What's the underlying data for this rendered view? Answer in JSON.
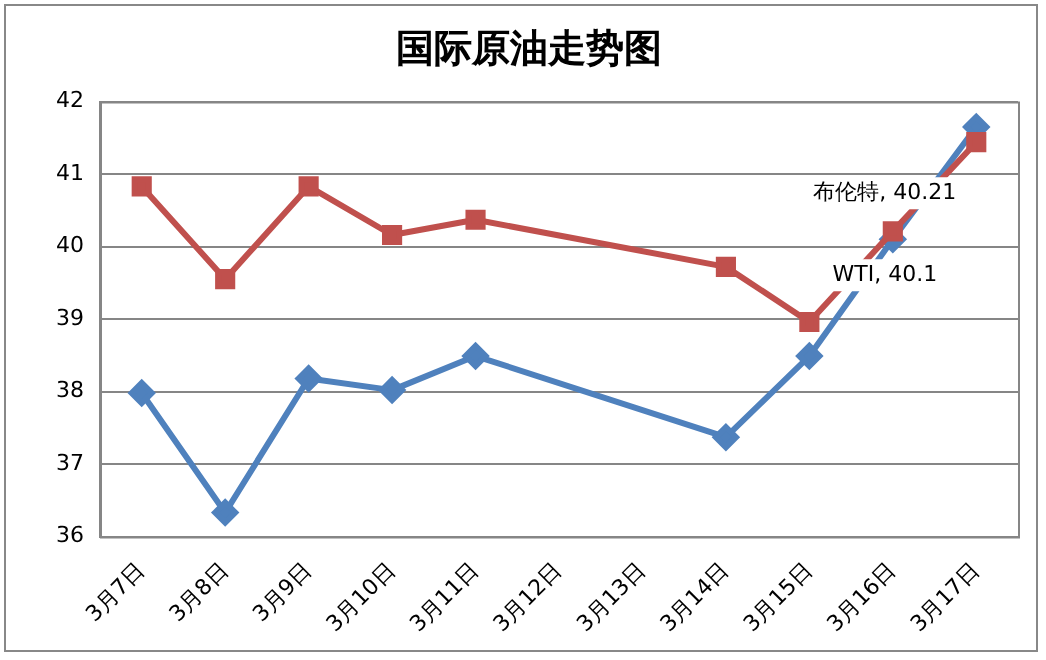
{
  "chart_data": {
    "type": "line",
    "title": "国际原油走势图",
    "categories": [
      "3月7日",
      "3月8日",
      "3月9日",
      "3月10日",
      "3月11日",
      "3月12日",
      "3月13日",
      "3月14日",
      "3月15日",
      "3月16日",
      "3月17日"
    ],
    "series": [
      {
        "color": "#4f81bd",
        "marker": "diamond",
        "values": [
          37.98,
          36.33,
          38.18,
          38.02,
          38.49,
          null,
          null,
          37.37,
          38.49,
          40.1,
          41.65
        ]
      },
      {
        "color": "#c0504d",
        "marker": "square",
        "values": [
          40.83,
          39.55,
          40.83,
          40.16,
          40.37,
          null,
          null,
          39.72,
          38.96,
          40.21,
          41.44
        ]
      }
    ],
    "annotations": [
      {
        "text": "布伦特, 40.21",
        "x": "3月16日",
        "y": 40.21
      },
      {
        "text": "WTI, 40.1",
        "x": "3月16日",
        "y": 40.1
      }
    ],
    "ylim": [
      36,
      42
    ],
    "yticks": [
      36,
      37,
      38,
      39,
      40,
      41,
      42
    ],
    "grid": "y",
    "legend": false,
    "line_style": "solid"
  }
}
